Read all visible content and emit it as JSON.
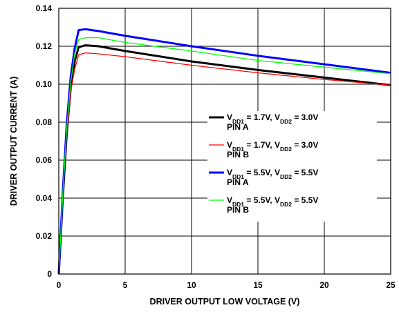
{
  "chart_data": {
    "type": "line",
    "xlabel": "DRIVER OUTPUT LOW VOLTAGE (V)",
    "ylabel": "DRIVER OUTPUT CURRENT (A)",
    "xlim": [
      0,
      25
    ],
    "ylim": [
      0,
      0.14
    ],
    "x_ticks": [
      "0",
      "5",
      "10",
      "15",
      "20",
      "25"
    ],
    "y_ticks": [
      "0",
      "0.02",
      "0.04",
      "0.06",
      "0.08",
      "0.10",
      "0.12",
      "0.14"
    ],
    "grid": true,
    "legend_position": "center-right",
    "series": [
      {
        "name": "VDD1 = 1.7V, VDD2 = 3.0V PIN A",
        "label_parts": [
          "V",
          "DD1",
          " = 1.7V, V",
          "DD2",
          " = 3.0V"
        ],
        "label_line2": "PIN A",
        "color": "#000000",
        "width": 3,
        "x": [
          0,
          0.3,
          0.6,
          0.9,
          1.2,
          1.5,
          2,
          3,
          5,
          10,
          15,
          20,
          25
        ],
        "y": [
          0,
          0.04,
          0.074,
          0.098,
          0.112,
          0.1195,
          0.1205,
          0.12,
          0.1175,
          0.112,
          0.1075,
          0.1035,
          0.0995
        ]
      },
      {
        "name": "VDD1 = 1.7V, VDD2 = 3.0V PIN B",
        "label_parts": [
          "V",
          "DD1",
          " = 1.7V, V",
          "DD2",
          " = 3.0V"
        ],
        "label_line2": "PIN B",
        "color": "#ff0000",
        "width": 1.3,
        "x": [
          0,
          0.3,
          0.6,
          0.9,
          1.2,
          1.5,
          2,
          3,
          5,
          10,
          15,
          20,
          25
        ],
        "y": [
          0,
          0.04,
          0.073,
          0.096,
          0.108,
          0.1155,
          0.1165,
          0.116,
          0.1145,
          0.11,
          0.106,
          0.1025,
          0.0995
        ]
      },
      {
        "name": "VDD1 = 5.5V, VDD2 = 5.5V PIN A",
        "label_parts": [
          "V",
          "DD1",
          " = 5.5V, V",
          "DD2",
          " = 5.5V"
        ],
        "label_line2": "PIN A",
        "color": "#0000ff",
        "width": 3,
        "x": [
          0,
          0.3,
          0.6,
          0.9,
          1.2,
          1.5,
          2,
          3,
          5,
          10,
          15,
          20,
          25
        ],
        "y": [
          0,
          0.043,
          0.079,
          0.104,
          0.119,
          0.1285,
          0.129,
          0.128,
          0.1255,
          0.12,
          0.115,
          0.1105,
          0.106
        ]
      },
      {
        "name": "VDD1 = 5.5V, VDD2 = 5.5V PIN B",
        "label_parts": [
          "V",
          "DD1",
          " = 5.5V, V",
          "DD2",
          " = 5.5V"
        ],
        "label_line2": "PIN B",
        "color": "#00ff00",
        "width": 1.3,
        "x": [
          0,
          0.3,
          0.6,
          0.9,
          1.2,
          1.5,
          2,
          3,
          5,
          10,
          15,
          20,
          25
        ],
        "y": [
          0,
          0.042,
          0.077,
          0.101,
          0.116,
          0.1235,
          0.1245,
          0.1245,
          0.122,
          0.1175,
          0.1125,
          0.109,
          0.1055
        ]
      }
    ]
  }
}
